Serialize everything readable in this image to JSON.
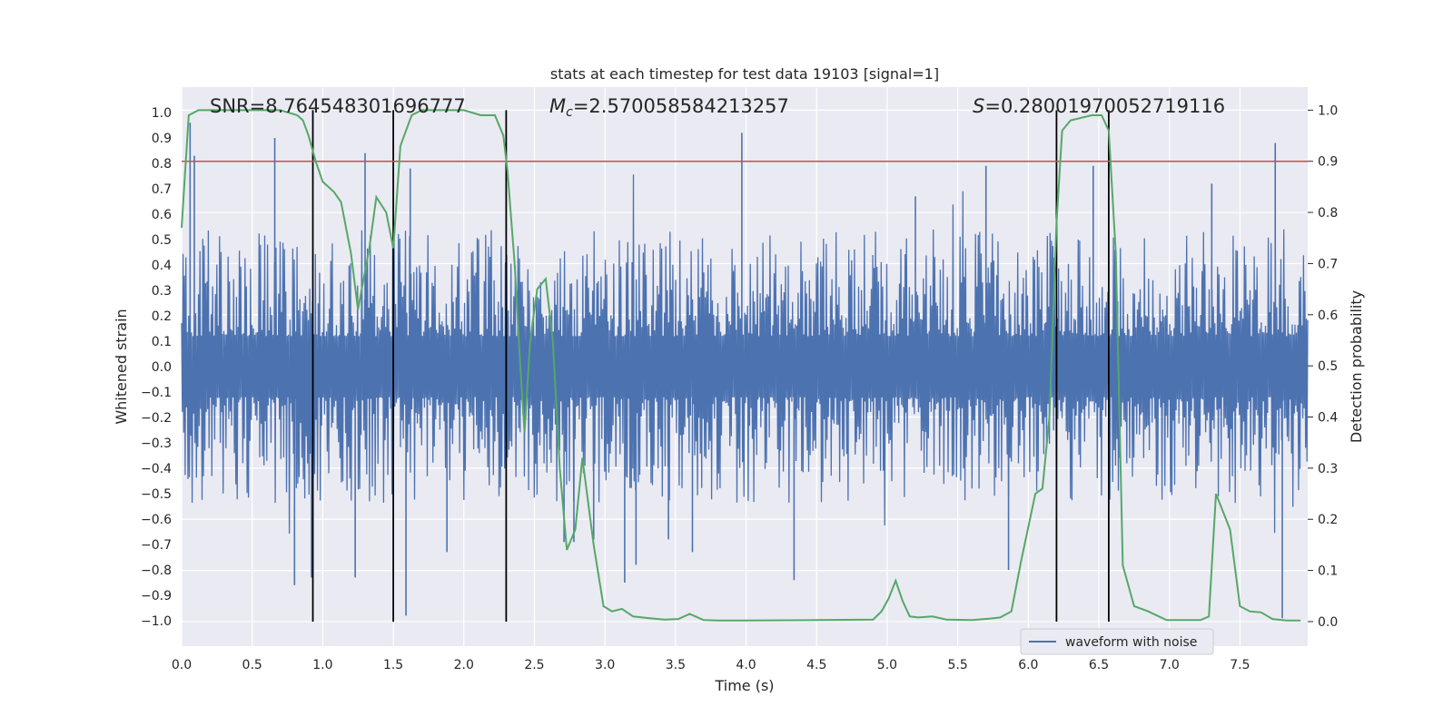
{
  "chart_data": {
    "type": "line",
    "title": "stats at each timestep for test data 19103 [signal=1]",
    "xlabel": "Time (s)",
    "ylabel": "Whitened strain",
    "y2label": "Detection probability",
    "xlim": [
      0.0,
      7.98
    ],
    "ylim": [
      -1.1,
      1.1
    ],
    "y2lim": [
      -0.048,
      1.045
    ],
    "xticks": [
      "0.0",
      "0.5",
      "1.0",
      "1.5",
      "2.0",
      "2.5",
      "3.0",
      "3.5",
      "4.0",
      "4.5",
      "5.0",
      "5.5",
      "6.0",
      "6.5",
      "7.0",
      "7.5"
    ],
    "yticks": [
      "1.0",
      "0.9",
      "0.8",
      "0.7",
      "0.6",
      "0.5",
      "0.4",
      "0.3",
      "0.2",
      "0.1",
      "0.0",
      "−0.1",
      "−0.2",
      "−0.3",
      "−0.4",
      "−0.5",
      "−0.6",
      "−0.7",
      "−0.8",
      "−0.9",
      "−1.0"
    ],
    "y2ticks": [
      "1.0",
      "0.9",
      "0.8",
      "0.7",
      "0.6",
      "0.5",
      "0.4",
      "0.3",
      "0.2",
      "0.1",
      "0.0"
    ],
    "grid": true,
    "legend_position": "lower-right",
    "annotations": {
      "snr": "SNR=8.764548301696777",
      "mc_symbol": "M",
      "mc_subscript": "c",
      "mc_value": "=2.570058584213257",
      "s_symbol": "S",
      "s_value": "=0.28001970052719116"
    },
    "threshold": {
      "y2": 0.9,
      "color": "#c44e52"
    },
    "vertical_lines_x": [
      0.93,
      1.5,
      2.3,
      6.2,
      6.57
    ],
    "series": [
      {
        "name": "waveform with noise",
        "axis": "left",
        "color": "#4c72b0",
        "note_envelope": "dense noise, typical |amplitude| 0.2-0.5",
        "spikes": [
          [
            0.06,
            0.96
          ],
          [
            0.09,
            0.83
          ],
          [
            0.66,
            0.9
          ],
          [
            0.8,
            -0.86
          ],
          [
            0.92,
            -0.83
          ],
          [
            1.3,
            0.84
          ],
          [
            1.23,
            -0.83
          ],
          [
            1.59,
            -0.98
          ],
          [
            1.62,
            0.78
          ],
          [
            1.88,
            -0.73
          ],
          [
            2.71,
            -0.69
          ],
          [
            2.78,
            -0.69
          ],
          [
            2.92,
            -0.68
          ],
          [
            3.14,
            -0.85
          ],
          [
            3.22,
            -0.78
          ],
          [
            3.45,
            -0.68
          ],
          [
            3.62,
            -0.73
          ],
          [
            3.97,
            0.92
          ],
          [
            4.34,
            -0.84
          ],
          [
            5.2,
            0.67
          ],
          [
            5.7,
            0.79
          ],
          [
            5.86,
            -0.8
          ],
          [
            6.46,
            0.79
          ],
          [
            7.3,
            0.72
          ],
          [
            7.75,
            0.88
          ],
          [
            7.8,
            -0.99
          ]
        ]
      },
      {
        "name": "",
        "axis": "right",
        "color": "#55a868",
        "x": [
          0.0,
          0.05,
          0.12,
          0.3,
          0.5,
          0.7,
          0.82,
          0.86,
          0.9,
          0.95,
          1.0,
          1.08,
          1.13,
          1.2,
          1.25,
          1.33,
          1.38,
          1.45,
          1.5,
          1.55,
          1.63,
          1.7,
          1.8,
          2.0,
          2.12,
          2.22,
          2.28,
          2.31,
          2.36,
          2.4,
          2.43,
          2.47,
          2.52,
          2.58,
          2.63,
          2.68,
          2.73,
          2.79,
          2.84,
          2.92,
          2.99,
          3.05,
          3.12,
          3.2,
          3.3,
          3.42,
          3.52,
          3.6,
          3.7,
          3.8,
          4.0,
          4.5,
          4.9,
          4.96,
          5.01,
          5.06,
          5.11,
          5.16,
          5.22,
          5.32,
          5.42,
          5.6,
          5.73,
          5.8,
          5.88,
          5.95,
          6.05,
          6.1,
          6.15,
          6.2,
          6.24,
          6.3,
          6.45,
          6.52,
          6.57,
          6.62,
          6.67,
          6.75,
          6.85,
          6.98,
          7.1,
          7.22,
          7.28,
          7.33,
          7.43,
          7.5,
          7.57,
          7.65,
          7.73,
          7.83,
          7.93
        ],
        "y": [
          0.77,
          0.99,
          1.0,
          1.0,
          1.0,
          1.0,
          0.99,
          0.98,
          0.95,
          0.9,
          0.86,
          0.84,
          0.82,
          0.72,
          0.61,
          0.73,
          0.83,
          0.8,
          0.73,
          0.93,
          0.99,
          1.0,
          1.0,
          1.0,
          0.99,
          0.99,
          0.95,
          0.88,
          0.7,
          0.5,
          0.37,
          0.55,
          0.65,
          0.67,
          0.55,
          0.3,
          0.14,
          0.18,
          0.32,
          0.15,
          0.03,
          0.02,
          0.025,
          0.01,
          0.007,
          0.004,
          0.005,
          0.015,
          0.003,
          0.002,
          0.002,
          0.003,
          0.004,
          0.02,
          0.045,
          0.08,
          0.04,
          0.01,
          0.008,
          0.01,
          0.004,
          0.003,
          0.006,
          0.008,
          0.02,
          0.12,
          0.25,
          0.26,
          0.4,
          0.78,
          0.96,
          0.98,
          0.99,
          0.99,
          0.96,
          0.72,
          0.11,
          0.03,
          0.02,
          0.003,
          0.003,
          0.003,
          0.01,
          0.25,
          0.18,
          0.03,
          0.02,
          0.018,
          0.005,
          0.002,
          0.002
        ]
      }
    ]
  }
}
